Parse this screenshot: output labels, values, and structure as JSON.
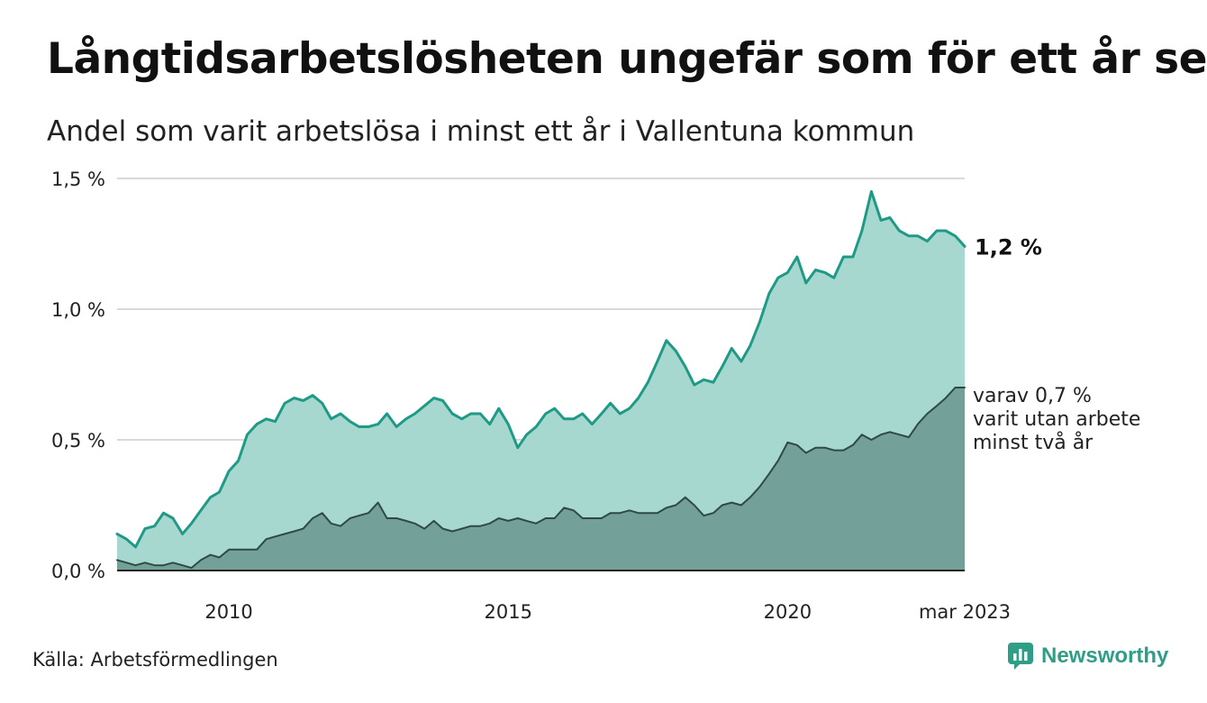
{
  "header": {
    "title": "Långtidsarbetslösheten ungefär som för ett år sen",
    "subtitle": "Andel som varit arbetslösa i minst ett år i Vallentuna kommun"
  },
  "footer": {
    "source": "Källa: Arbetsförmedlingen",
    "brand": "Newsworthy"
  },
  "colors": {
    "area_total": "#a6d8d0",
    "line_total": "#1f9a86",
    "area_longterm": "#73a199",
    "line_longterm": "#2f4a45",
    "grid": "#d9d9d9",
    "brand": "#2f9e86"
  },
  "chart_data": {
    "type": "area",
    "y_ticks": [
      {
        "value": 0,
        "label": "0,0 %"
      },
      {
        "value": 0.5,
        "label": "0,5 %"
      },
      {
        "value": 1.0,
        "label": "1,0 %"
      },
      {
        "value": 1.5,
        "label": "1,5 %"
      }
    ],
    "x_ticks": [
      {
        "value": 2010.0,
        "label": "2010"
      },
      {
        "value": 2015.0,
        "label": "2015"
      },
      {
        "value": 2020.0,
        "label": "2020"
      },
      {
        "value": 2023.17,
        "label": "mar 2023"
      }
    ],
    "xlim": [
      2008.0,
      2023.17
    ],
    "ylim": [
      0,
      1.5
    ],
    "grid": true,
    "series": [
      {
        "x": [
          2008.0,
          2008.17,
          2008.33,
          2008.5,
          2008.67,
          2008.83,
          2009.0,
          2009.17,
          2009.33,
          2009.5,
          2009.67,
          2009.83,
          2010.0,
          2010.17,
          2010.33,
          2010.5,
          2010.67,
          2010.83,
          2011.0,
          2011.17,
          2011.33,
          2011.5,
          2011.67,
          2011.83,
          2012.0,
          2012.17,
          2012.33,
          2012.5,
          2012.67,
          2012.83,
          2013.0,
          2013.17,
          2013.33,
          2013.5,
          2013.67,
          2013.83,
          2014.0,
          2014.17,
          2014.33,
          2014.5,
          2014.67,
          2014.83,
          2015.0,
          2015.17,
          2015.33,
          2015.5,
          2015.67,
          2015.83,
          2016.0,
          2016.17,
          2016.33,
          2016.5,
          2016.67,
          2016.83,
          2017.0,
          2017.17,
          2017.33,
          2017.5,
          2017.67,
          2017.83,
          2018.0,
          2018.17,
          2018.33,
          2018.5,
          2018.67,
          2018.83,
          2019.0,
          2019.17,
          2019.33,
          2019.5,
          2019.67,
          2019.83,
          2020.0,
          2020.17,
          2020.33,
          2020.5,
          2020.67,
          2020.83,
          2021.0,
          2021.17,
          2021.33,
          2021.5,
          2021.67,
          2021.83,
          2022.0,
          2022.17,
          2022.33,
          2022.5,
          2022.67,
          2022.83,
          2023.0,
          2023.17
        ],
        "values": [
          0.14,
          0.12,
          0.09,
          0.16,
          0.17,
          0.22,
          0.2,
          0.14,
          0.18,
          0.23,
          0.28,
          0.3,
          0.38,
          0.42,
          0.52,
          0.56,
          0.58,
          0.57,
          0.64,
          0.66,
          0.65,
          0.67,
          0.64,
          0.58,
          0.6,
          0.57,
          0.55,
          0.55,
          0.56,
          0.6,
          0.55,
          0.58,
          0.6,
          0.63,
          0.66,
          0.65,
          0.6,
          0.58,
          0.6,
          0.6,
          0.56,
          0.62,
          0.56,
          0.47,
          0.52,
          0.55,
          0.6,
          0.62,
          0.58,
          0.58,
          0.6,
          0.56,
          0.6,
          0.64,
          0.6,
          0.62,
          0.66,
          0.72,
          0.8,
          0.88,
          0.84,
          0.78,
          0.71,
          0.73,
          0.72,
          0.78,
          0.85,
          0.8,
          0.86,
          0.95,
          1.06,
          1.12,
          1.14,
          1.2,
          1.1,
          1.15,
          1.14,
          1.12,
          1.2,
          1.2,
          1.3,
          1.45,
          1.34,
          1.35,
          1.3,
          1.28,
          1.28,
          1.26,
          1.3,
          1.3,
          1.28,
          1.24
        ]
      },
      {
        "x": [
          2008.0,
          2008.17,
          2008.33,
          2008.5,
          2008.67,
          2008.83,
          2009.0,
          2009.17,
          2009.33,
          2009.5,
          2009.67,
          2009.83,
          2010.0,
          2010.17,
          2010.33,
          2010.5,
          2010.67,
          2010.83,
          2011.0,
          2011.17,
          2011.33,
          2011.5,
          2011.67,
          2011.83,
          2012.0,
          2012.17,
          2012.33,
          2012.5,
          2012.67,
          2012.83,
          2013.0,
          2013.17,
          2013.33,
          2013.5,
          2013.67,
          2013.83,
          2014.0,
          2014.17,
          2014.33,
          2014.5,
          2014.67,
          2014.83,
          2015.0,
          2015.17,
          2015.33,
          2015.5,
          2015.67,
          2015.83,
          2016.0,
          2016.17,
          2016.33,
          2016.5,
          2016.67,
          2016.83,
          2017.0,
          2017.17,
          2017.33,
          2017.5,
          2017.67,
          2017.83,
          2018.0,
          2018.17,
          2018.33,
          2018.5,
          2018.67,
          2018.83,
          2019.0,
          2019.17,
          2019.33,
          2019.5,
          2019.67,
          2019.83,
          2020.0,
          2020.17,
          2020.33,
          2020.5,
          2020.67,
          2020.83,
          2021.0,
          2021.17,
          2021.33,
          2021.5,
          2021.67,
          2021.83,
          2022.0,
          2022.17,
          2022.33,
          2022.5,
          2022.67,
          2022.83,
          2023.0,
          2023.17
        ],
        "values": [
          0.04,
          0.03,
          0.02,
          0.03,
          0.02,
          0.02,
          0.03,
          0.02,
          0.01,
          0.04,
          0.06,
          0.05,
          0.08,
          0.08,
          0.08,
          0.08,
          0.12,
          0.13,
          0.14,
          0.15,
          0.16,
          0.2,
          0.22,
          0.18,
          0.17,
          0.2,
          0.21,
          0.22,
          0.26,
          0.2,
          0.2,
          0.19,
          0.18,
          0.16,
          0.19,
          0.16,
          0.15,
          0.16,
          0.17,
          0.17,
          0.18,
          0.2,
          0.19,
          0.2,
          0.19,
          0.18,
          0.2,
          0.2,
          0.24,
          0.23,
          0.2,
          0.2,
          0.2,
          0.22,
          0.22,
          0.23,
          0.22,
          0.22,
          0.22,
          0.24,
          0.25,
          0.28,
          0.25,
          0.21,
          0.22,
          0.25,
          0.26,
          0.25,
          0.28,
          0.32,
          0.37,
          0.42,
          0.49,
          0.48,
          0.45,
          0.47,
          0.47,
          0.46,
          0.46,
          0.48,
          0.52,
          0.5,
          0.52,
          0.53,
          0.52,
          0.51,
          0.56,
          0.6,
          0.63,
          0.66,
          0.7,
          0.7
        ]
      }
    ],
    "end_label": "1,2 %",
    "annotation_lines": [
      "varav 0,7 %",
      "varit utan arbete",
      "minst två år"
    ]
  }
}
